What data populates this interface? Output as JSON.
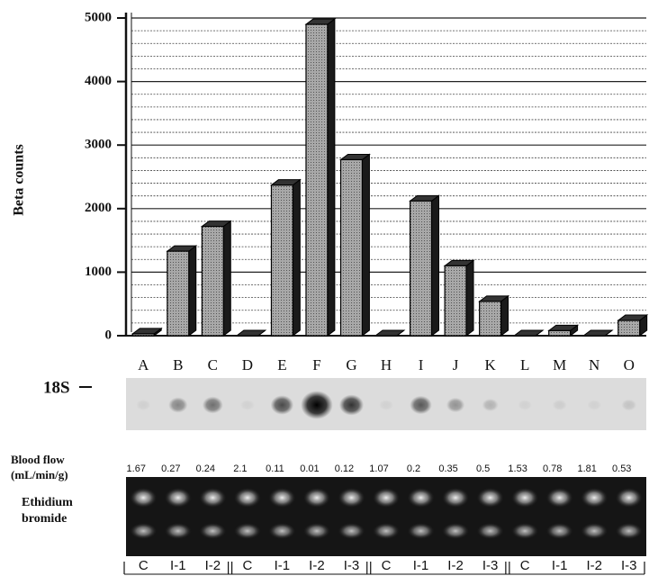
{
  "chart_data": {
    "type": "bar3d",
    "ylabel": "Beta counts",
    "categories": [
      "A",
      "B",
      "C",
      "D",
      "E",
      "F",
      "G",
      "H",
      "I",
      "J",
      "K",
      "L",
      "M",
      "N",
      "O"
    ],
    "values": [
      30,
      1330,
      1720,
      0,
      2370,
      4900,
      2770,
      0,
      2120,
      1100,
      540,
      0,
      80,
      0,
      240
    ],
    "color": "#9c9c9c",
    "ylim": [
      0,
      5000
    ],
    "yticks": [
      0,
      1000,
      2000,
      3000,
      4000,
      5000
    ],
    "grid": true,
    "band_label": "18S",
    "blood_flow": {
      "label": [
        "Blood flow",
        "(mL/min/g)"
      ],
      "values": [
        1.67,
        0.27,
        0.24,
        2.1,
        0.11,
        0.01,
        0.12,
        1.07,
        0.2,
        0.35,
        0.5,
        1.53,
        0.78,
        1.81,
        0.53
      ]
    },
    "stain_label": [
      "Ethidium",
      "bromide"
    ],
    "lanes": [
      "C",
      "I-1",
      "I-2",
      "C",
      "I-1",
      "I-2",
      "I-3",
      "C",
      "I-1",
      "I-2",
      "I-3",
      "C",
      "I-1",
      "I-2",
      "I-3"
    ]
  }
}
